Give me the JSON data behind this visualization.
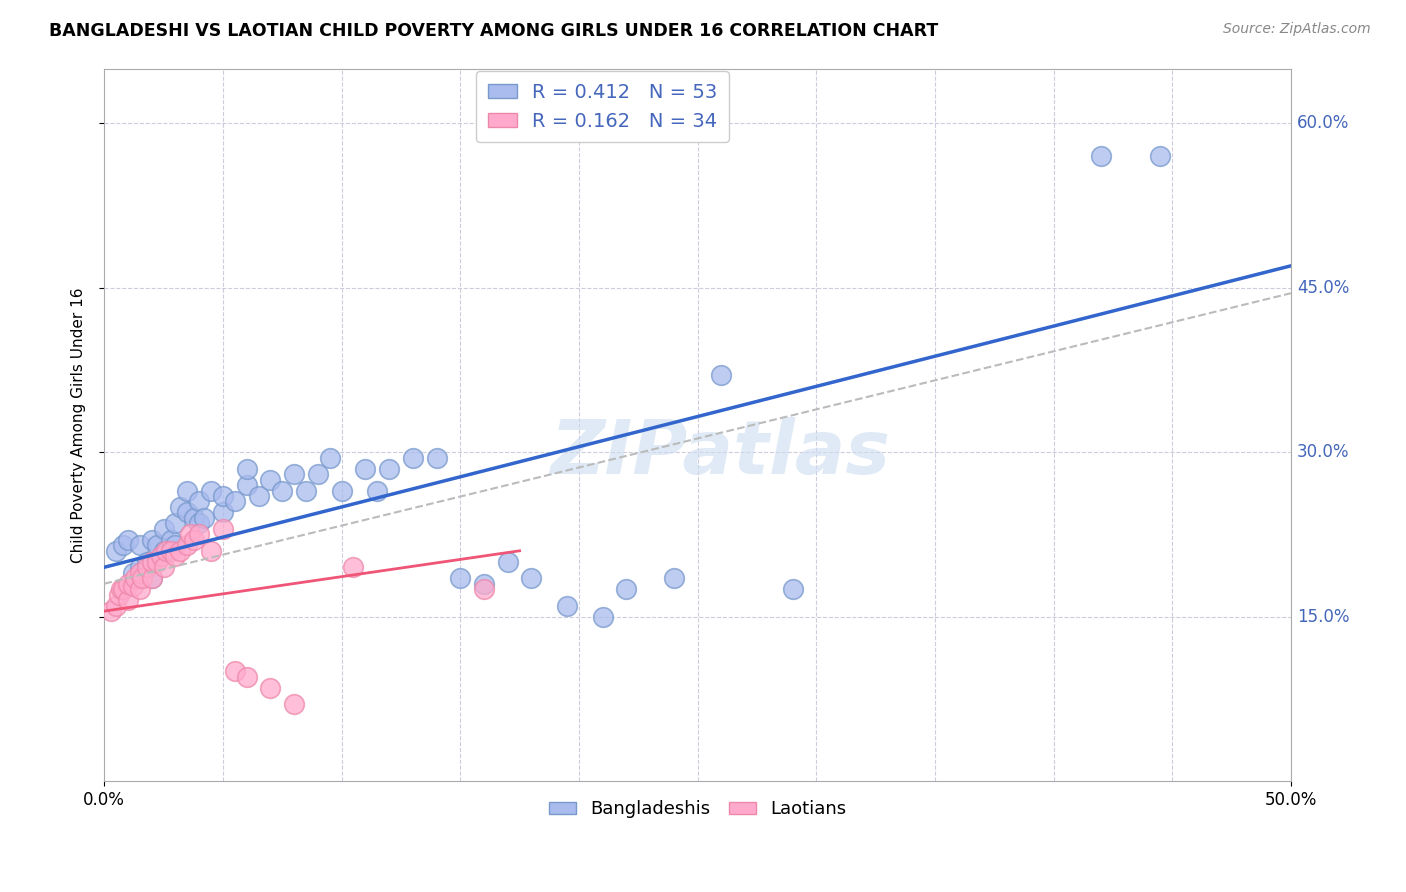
{
  "title": "BANGLADESHI VS LAOTIAN CHILD POVERTY AMONG GIRLS UNDER 16 CORRELATION CHART",
  "source": "Source: ZipAtlas.com",
  "ylabel": "Child Poverty Among Girls Under 16",
  "xlim": [
    0.0,
    0.5
  ],
  "ylim": [
    0.0,
    0.65
  ],
  "bg_color": "#ffffff",
  "grid_color": "#ccccdd",
  "watermark": "ZIPatlas",
  "legend_R1": "R = 0.412",
  "legend_N1": "N = 53",
  "legend_R2": "R = 0.162",
  "legend_N2": "N = 34",
  "blue_face": "#aabbee",
  "blue_edge": "#7799cc",
  "pink_face": "#ffaacc",
  "pink_edge": "#ee88aa",
  "line_blue": "#3366cc",
  "line_pink": "#ee5577",
  "line_gray": "#bbbbbb",
  "tick_color": "#4466bb",
  "bangladeshi_x": [
    0.005,
    0.008,
    0.01,
    0.012,
    0.015,
    0.015,
    0.018,
    0.02,
    0.02,
    0.022,
    0.025,
    0.025,
    0.028,
    0.03,
    0.03,
    0.032,
    0.035,
    0.035,
    0.038,
    0.04,
    0.04,
    0.042,
    0.045,
    0.05,
    0.05,
    0.055,
    0.06,
    0.06,
    0.065,
    0.07,
    0.075,
    0.08,
    0.085,
    0.09,
    0.095,
    0.1,
    0.11,
    0.115,
    0.12,
    0.13,
    0.14,
    0.15,
    0.16,
    0.17,
    0.18,
    0.195,
    0.21,
    0.22,
    0.24,
    0.26,
    0.29,
    0.42,
    0.445
  ],
  "bangladeshi_y": [
    0.21,
    0.215,
    0.22,
    0.19,
    0.215,
    0.195,
    0.2,
    0.22,
    0.185,
    0.215,
    0.21,
    0.23,
    0.22,
    0.215,
    0.235,
    0.25,
    0.245,
    0.265,
    0.24,
    0.235,
    0.255,
    0.24,
    0.265,
    0.245,
    0.26,
    0.255,
    0.27,
    0.285,
    0.26,
    0.275,
    0.265,
    0.28,
    0.265,
    0.28,
    0.295,
    0.265,
    0.285,
    0.265,
    0.285,
    0.295,
    0.295,
    0.185,
    0.18,
    0.2,
    0.185,
    0.16,
    0.15,
    0.175,
    0.185,
    0.37,
    0.175,
    0.57,
    0.57
  ],
  "laotian_x": [
    0.003,
    0.005,
    0.006,
    0.007,
    0.008,
    0.01,
    0.01,
    0.012,
    0.013,
    0.015,
    0.015,
    0.016,
    0.018,
    0.02,
    0.02,
    0.022,
    0.024,
    0.025,
    0.026,
    0.028,
    0.03,
    0.032,
    0.035,
    0.036,
    0.038,
    0.04,
    0.045,
    0.05,
    0.055,
    0.06,
    0.07,
    0.08,
    0.105,
    0.16
  ],
  "laotian_y": [
    0.155,
    0.16,
    0.17,
    0.175,
    0.175,
    0.165,
    0.18,
    0.178,
    0.185,
    0.175,
    0.19,
    0.185,
    0.195,
    0.185,
    0.2,
    0.2,
    0.205,
    0.195,
    0.21,
    0.21,
    0.205,
    0.21,
    0.215,
    0.225,
    0.22,
    0.225,
    0.21,
    0.23,
    0.1,
    0.095,
    0.085,
    0.07,
    0.195,
    0.175
  ],
  "blue_line_x": [
    0.0,
    0.5
  ],
  "blue_line_y": [
    0.195,
    0.47
  ],
  "gray_line_x": [
    0.0,
    0.5
  ],
  "gray_line_y": [
    0.18,
    0.445
  ],
  "pink_line_x": [
    0.0,
    0.175
  ],
  "pink_line_y": [
    0.155,
    0.21
  ]
}
